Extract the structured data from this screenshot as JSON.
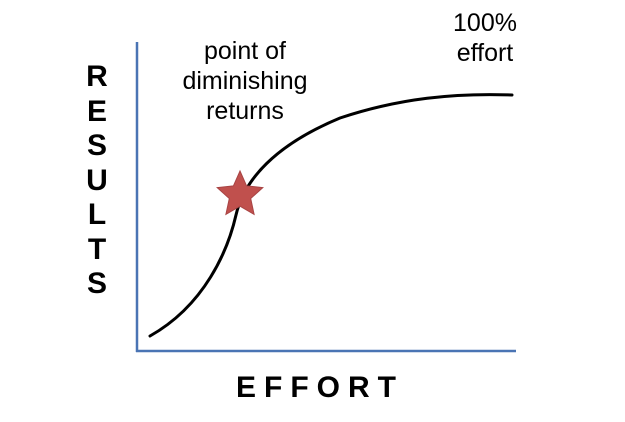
{
  "diagram": {
    "y_axis_label": "RESULTS",
    "x_axis_label": "EFFORT",
    "annotations": {
      "diminishing_returns": [
        "point of",
        "diminishing",
        "returns"
      ],
      "full_effort": [
        "100%",
        "effort"
      ]
    },
    "colors": {
      "axis": "#4a74b4",
      "curve": "#000000",
      "star_fill": "#c0504d",
      "star_stroke": "#a84444"
    }
  }
}
